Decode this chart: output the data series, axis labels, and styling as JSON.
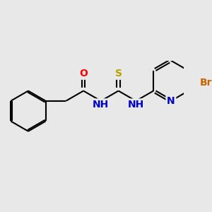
{
  "background_color": "#e8e8e8",
  "bond_color": "#000000",
  "bond_width": 1.5,
  "figsize": [
    3.0,
    3.0
  ],
  "dpi": 100,
  "atoms": {
    "O": {
      "color": "#ff0000",
      "fontsize": 10,
      "fontweight": "bold"
    },
    "S": {
      "color": "#b8a000",
      "fontsize": 10,
      "fontweight": "bold"
    },
    "N": {
      "color": "#0000cc",
      "fontsize": 10,
      "fontweight": "bold"
    },
    "Br": {
      "color": "#cc6600",
      "fontsize": 10,
      "fontweight": "bold"
    }
  },
  "bl": 1.0
}
